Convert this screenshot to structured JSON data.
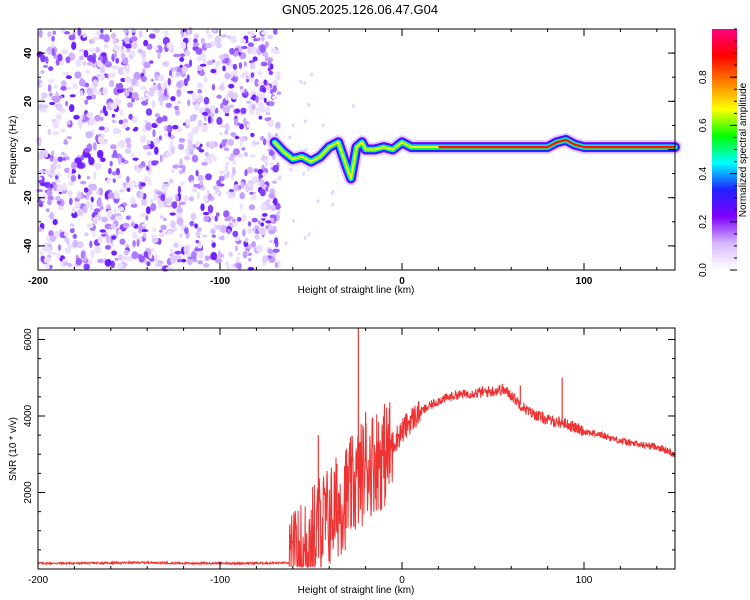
{
  "title": "GN05.2025.126.06.47.G04",
  "chart_data": [
    {
      "type": "heatmap",
      "xlabel": "Height of straight line (km)",
      "ylabel": "Frequency (Hz)",
      "xlim": [
        -200,
        150
      ],
      "ylim": [
        -50,
        50
      ],
      "x_ticks": [
        "-200",
        "-100",
        "0",
        "100"
      ],
      "y_ticks": [
        "-40",
        "-20",
        "0",
        "20",
        "40"
      ],
      "colorbar": {
        "label": "Normalized spectral amplitude",
        "range": [
          0,
          1
        ],
        "ticks": [
          "0.0",
          "0.2",
          "0.4",
          "0.6",
          "0.8"
        ],
        "colors": [
          "#ffffff",
          "#d6b8ff",
          "#7f00ff",
          "#2020ff",
          "#00ffff",
          "#00ff00",
          "#ffff00",
          "#ff8000",
          "#ff0000",
          "#ff0080"
        ]
      },
      "noise_region_x": [
        -200,
        -67
      ],
      "ridge": {
        "x": [
          -70,
          -65,
          -60,
          -55,
          -50,
          -45,
          -40,
          -35,
          -30,
          -28,
          -25,
          -22,
          -20,
          -15,
          -10,
          -5,
          0,
          5,
          10,
          20,
          30,
          40,
          50,
          60,
          70,
          80,
          85,
          90,
          95,
          100,
          120,
          150
        ],
        "y": [
          3,
          -1,
          -4,
          -3,
          -5,
          -3,
          1,
          3,
          -8,
          -12,
          1,
          3,
          0,
          0,
          1,
          0,
          3,
          1,
          1,
          1,
          1,
          1,
          1,
          1,
          1,
          1,
          3,
          4,
          2,
          1,
          1,
          1
        ]
      }
    },
    {
      "type": "line",
      "xlabel": "Height of straight line (km)",
      "ylabel": "SNR (10 * v/v)",
      "xlim": [
        -200,
        150
      ],
      "ylim": [
        0,
        6300
      ],
      "x_ticks": [
        "-200",
        "-100",
        "0",
        "100"
      ],
      "y_ticks": [
        "2000",
        "4000",
        "6000"
      ],
      "color": "#ee3333",
      "series": [
        {
          "x": [
            -200,
            -180,
            -160,
            -140,
            -120,
            -100,
            -80,
            -62,
            -55,
            -50,
            -45,
            -40,
            -35,
            -30,
            -25,
            -20,
            -15,
            -10,
            -5,
            0,
            5,
            10,
            20,
            30,
            40,
            50,
            55,
            60,
            65,
            70,
            80,
            90,
            100,
            110,
            120,
            130,
            140,
            150
          ],
          "values": [
            150,
            150,
            160,
            170,
            150,
            150,
            150,
            160,
            500,
            900,
            1300,
            1500,
            1800,
            2100,
            2400,
            2800,
            3000,
            3100,
            3300,
            3600,
            3900,
            4100,
            4400,
            4550,
            4600,
            4650,
            4700,
            4550,
            4300,
            4100,
            3900,
            3800,
            3600,
            3500,
            3350,
            3250,
            3200,
            3000
          ]
        }
      ],
      "spikes": [
        {
          "x": -24,
          "value": 6300
        },
        {
          "x": -46,
          "value": 3500
        },
        {
          "x": -20,
          "value": 4100
        },
        {
          "x": -7,
          "value": 4200
        },
        {
          "x": 88,
          "value": 5000
        },
        {
          "x": 65,
          "value": 4800
        }
      ]
    }
  ]
}
